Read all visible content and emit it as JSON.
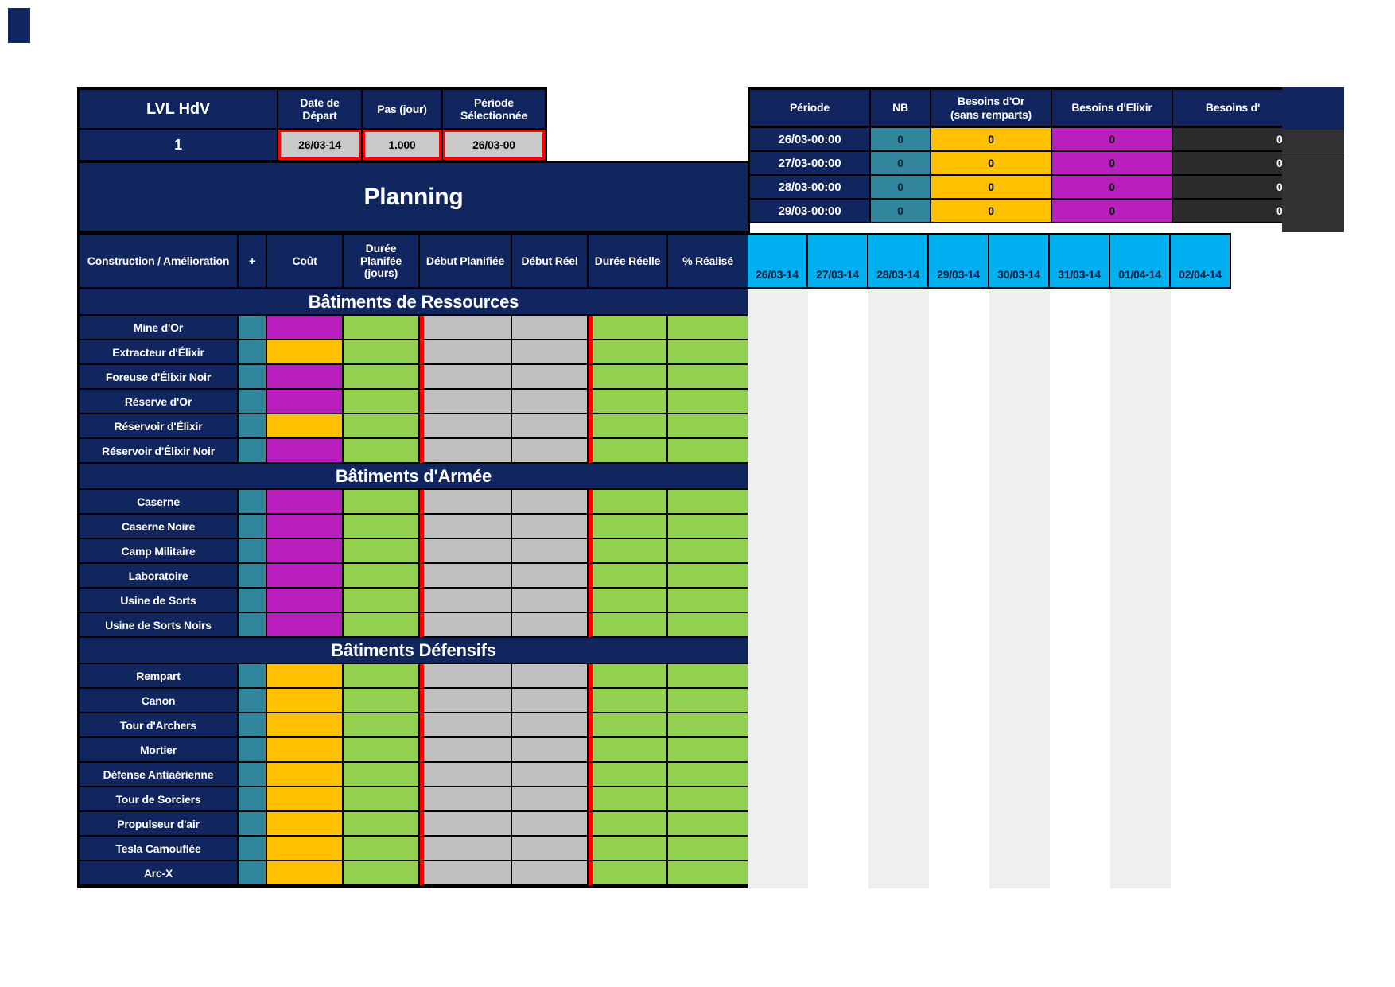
{
  "colors": {
    "navy": "#11265e",
    "cyan": "#00b0f0",
    "teal": "#31859c",
    "magenta": "#b91fbc",
    "orange": "#ffc000",
    "green": "#92d050",
    "gray_cell": "#c0c0c0",
    "value_gray": "#c9c9c9",
    "dark_cell": "#2b2b2b",
    "stripe": "#efefef",
    "red": "#ff0000"
  },
  "config": {
    "lvl_label": "LVL HdV",
    "lvl_value": "1",
    "fields": [
      {
        "label": "Date de\nDépart",
        "value": "26/03-14"
      },
      {
        "label": "Pas (jour)",
        "value": "1.000"
      },
      {
        "label": "Période\nSélectionnée",
        "value": "26/03-00"
      }
    ]
  },
  "planning": {
    "title": "Planning"
  },
  "needs": {
    "headers": [
      "Période",
      "NB",
      "Besoins d'Or\n(sans remparts)",
      "Besoins d'Elixir",
      "Besoins d'"
    ],
    "rows": [
      {
        "periode": "26/03-00:00",
        "nb": "0",
        "or": "0",
        "elixir": "0",
        "noir": "0"
      },
      {
        "periode": "27/03-00:00",
        "nb": "0",
        "or": "0",
        "elixir": "0",
        "noir": "0"
      },
      {
        "periode": "28/03-00:00",
        "nb": "0",
        "or": "0",
        "elixir": "0",
        "noir": "0"
      },
      {
        "periode": "29/03-00:00",
        "nb": "0",
        "or": "0",
        "elixir": "0",
        "noir": "0"
      }
    ]
  },
  "gantt": {
    "headers": [
      "Construction / Amélioration",
      "+",
      "Coût",
      "Durée\nPlanifée\n(jours)",
      "Début Planifiée",
      "Début Réel",
      "Durée Réelle",
      "% Réalisé"
    ],
    "dates": [
      "26/03-14",
      "27/03-14",
      "28/03-14",
      "29/03-14",
      "30/03-14",
      "31/03-14",
      "01/04-14",
      "02/04-14"
    ],
    "sections": [
      {
        "title": "Bâtiments de Ressources",
        "rows": [
          {
            "name": "Mine d'Or",
            "cost": "magenta"
          },
          {
            "name": "Extracteur d'Élixir",
            "cost": "orange"
          },
          {
            "name": "Foreuse d'Élixir Noir",
            "cost": "magenta"
          },
          {
            "name": "Réserve d'Or",
            "cost": "magenta"
          },
          {
            "name": "Réservoir d'Élixir",
            "cost": "orange"
          },
          {
            "name": "Réservoir d'Élixir Noir",
            "cost": "magenta"
          }
        ]
      },
      {
        "title": "Bâtiments d'Armée",
        "rows": [
          {
            "name": "Caserne",
            "cost": "magenta"
          },
          {
            "name": "Caserne Noire",
            "cost": "magenta"
          },
          {
            "name": "Camp Militaire",
            "cost": "magenta"
          },
          {
            "name": "Laboratoire",
            "cost": "magenta"
          },
          {
            "name": "Usine de Sorts",
            "cost": "magenta"
          },
          {
            "name": "Usine de Sorts Noirs",
            "cost": "magenta"
          }
        ]
      },
      {
        "title": "Bâtiments Défensifs",
        "rows": [
          {
            "name": "Rempart",
            "cost": "orange"
          },
          {
            "name": "Canon",
            "cost": "orange"
          },
          {
            "name": "Tour d'Archers",
            "cost": "orange"
          },
          {
            "name": "Mortier",
            "cost": "orange"
          },
          {
            "name": "Défense Antiaérienne",
            "cost": "orange"
          },
          {
            "name": "Tour de Sorciers",
            "cost": "orange"
          },
          {
            "name": "Propulseur d'air",
            "cost": "orange"
          },
          {
            "name": "Tesla Camouflée",
            "cost": "orange"
          },
          {
            "name": "Arc-X",
            "cost": "orange"
          }
        ]
      }
    ]
  }
}
